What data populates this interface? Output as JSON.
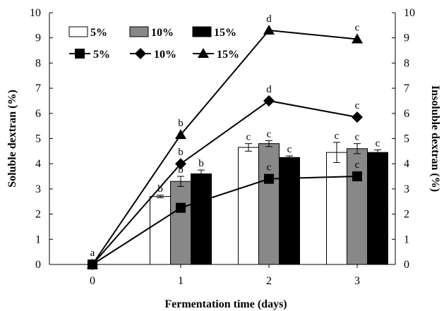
{
  "chart_data": {
    "type": "bar",
    "xlabel": "Fermentation time (days)",
    "ylabel_left": "Soluble dextran (%)",
    "ylabel_right": "Insoluble dextran (%)",
    "x_ticks": [
      "0",
      "1",
      "2",
      "3"
    ],
    "y_ticks": [
      "0",
      "1",
      "2",
      "3",
      "4",
      "5",
      "6",
      "7",
      "8",
      "9",
      "10"
    ],
    "ylim": [
      0,
      10
    ],
    "grid": false,
    "legend_position": "top-left",
    "bar_series": [
      {
        "name": "5%",
        "color": "#ffffff",
        "categories": [
          "1",
          "2",
          "3"
        ],
        "values": [
          2.7,
          4.65,
          4.45
        ],
        "errors": [
          0.05,
          0.15,
          0.4
        ],
        "labels": [
          "b",
          "c",
          "c"
        ]
      },
      {
        "name": "10%",
        "color": "#888888",
        "categories": [
          "1",
          "2",
          "3"
        ],
        "values": [
          3.3,
          4.8,
          4.6
        ],
        "errors": [
          0.2,
          0.12,
          0.2
        ],
        "labels": [
          "b",
          "c",
          "c"
        ]
      },
      {
        "name": "15%",
        "color": "#000000",
        "categories": [
          "1",
          "2",
          "3"
        ],
        "values": [
          3.6,
          4.25,
          4.45
        ],
        "errors": [
          0.15,
          0.06,
          0.1
        ],
        "labels": [
          "b",
          "c",
          "c"
        ]
      }
    ],
    "line_series": [
      {
        "name": "5%",
        "marker": "square",
        "x": [
          "0",
          "1",
          "2",
          "3"
        ],
        "values": [
          0,
          2.25,
          3.4,
          3.5
        ],
        "labels": [
          "a",
          "",
          "c",
          "c"
        ]
      },
      {
        "name": "10%",
        "marker": "diamond",
        "x": [
          "0",
          "1",
          "2",
          "3"
        ],
        "values": [
          0,
          4.0,
          6.5,
          5.85
        ],
        "labels": [
          "",
          "b",
          "d",
          "c"
        ]
      },
      {
        "name": "15%",
        "marker": "triangle",
        "x": [
          "0",
          "1",
          "2",
          "3"
        ],
        "values": [
          0,
          5.15,
          9.3,
          8.95
        ],
        "labels": [
          "",
          "b",
          "d",
          "c"
        ]
      }
    ]
  }
}
